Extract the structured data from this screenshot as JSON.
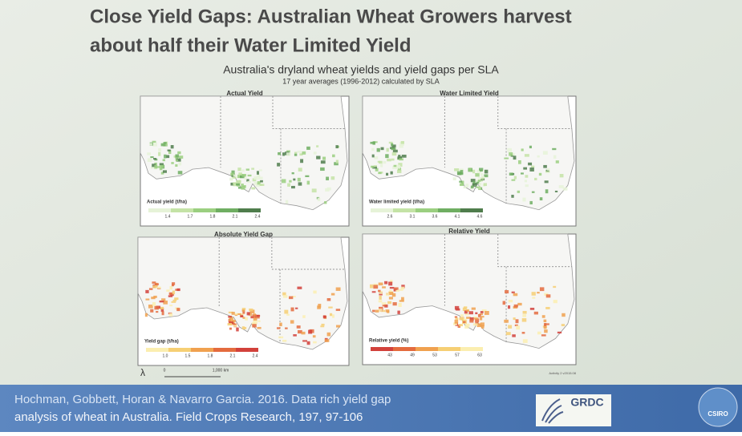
{
  "title": {
    "lines": [
      "Close Yield Gaps: Australian Wheat Growers harvest",
      "about half their Water Limited Yield"
    ]
  },
  "figure": {
    "title": "Australia's dryland wheat yields and yield gaps per SLA",
    "subtitle": "17 year averages (1996-2012) calculated by SLA",
    "panels": [
      {
        "title": "Actual Yield",
        "legend_title": "Actual yield (t/ha)",
        "legend_ticks": [
          "1.4",
          "1.7",
          "1.8",
          "2.1",
          "2.4"
        ],
        "legend_colors": [
          "#e6f3d8",
          "#c4e3a6",
          "#9bcf80",
          "#6fae62",
          "#4f7d4c"
        ]
      },
      {
        "title": "Water Limited Yield",
        "legend_title": "Water limited yield (t/ha)",
        "legend_ticks": [
          "2.6",
          "3.1",
          "3.6",
          "4.1",
          "4.6"
        ],
        "legend_colors": [
          "#e6f3d8",
          "#c4e3a6",
          "#9bcf80",
          "#6fae62",
          "#4f7d4c"
        ]
      },
      {
        "title": "Absolute Yield Gap",
        "legend_title": "Yield gap (t/ha)",
        "legend_ticks": [
          "1.0",
          "1.5",
          "1.8",
          "2.1",
          "2.4"
        ],
        "legend_colors": [
          "#fbeeb0",
          "#f6cf74",
          "#f0a14f",
          "#e46b3e",
          "#d2413b"
        ]
      },
      {
        "title": "Relative Yield",
        "legend_title": "Relative yield (%)",
        "legend_ticks": [
          "43",
          "49",
          "53",
          "57",
          "63"
        ],
        "legend_colors": [
          "#d2413b",
          "#e46b3e",
          "#f0a14f",
          "#f6cf74",
          "#fbeeb0"
        ]
      }
    ],
    "scale_zero": "0",
    "scale_label": "1,000 km",
    "north": "λ",
    "version": "Activity 2 v2015.08"
  },
  "footer": {
    "citation": [
      "Hochman, Gobbett, Horan & Navarro Garcia. 2016. Data rich yield gap",
      "analysis of wheat in Australia. Field Crops Research, 197, 97-106"
    ],
    "logos": [
      "GRDC",
      "CSIRO"
    ]
  }
}
